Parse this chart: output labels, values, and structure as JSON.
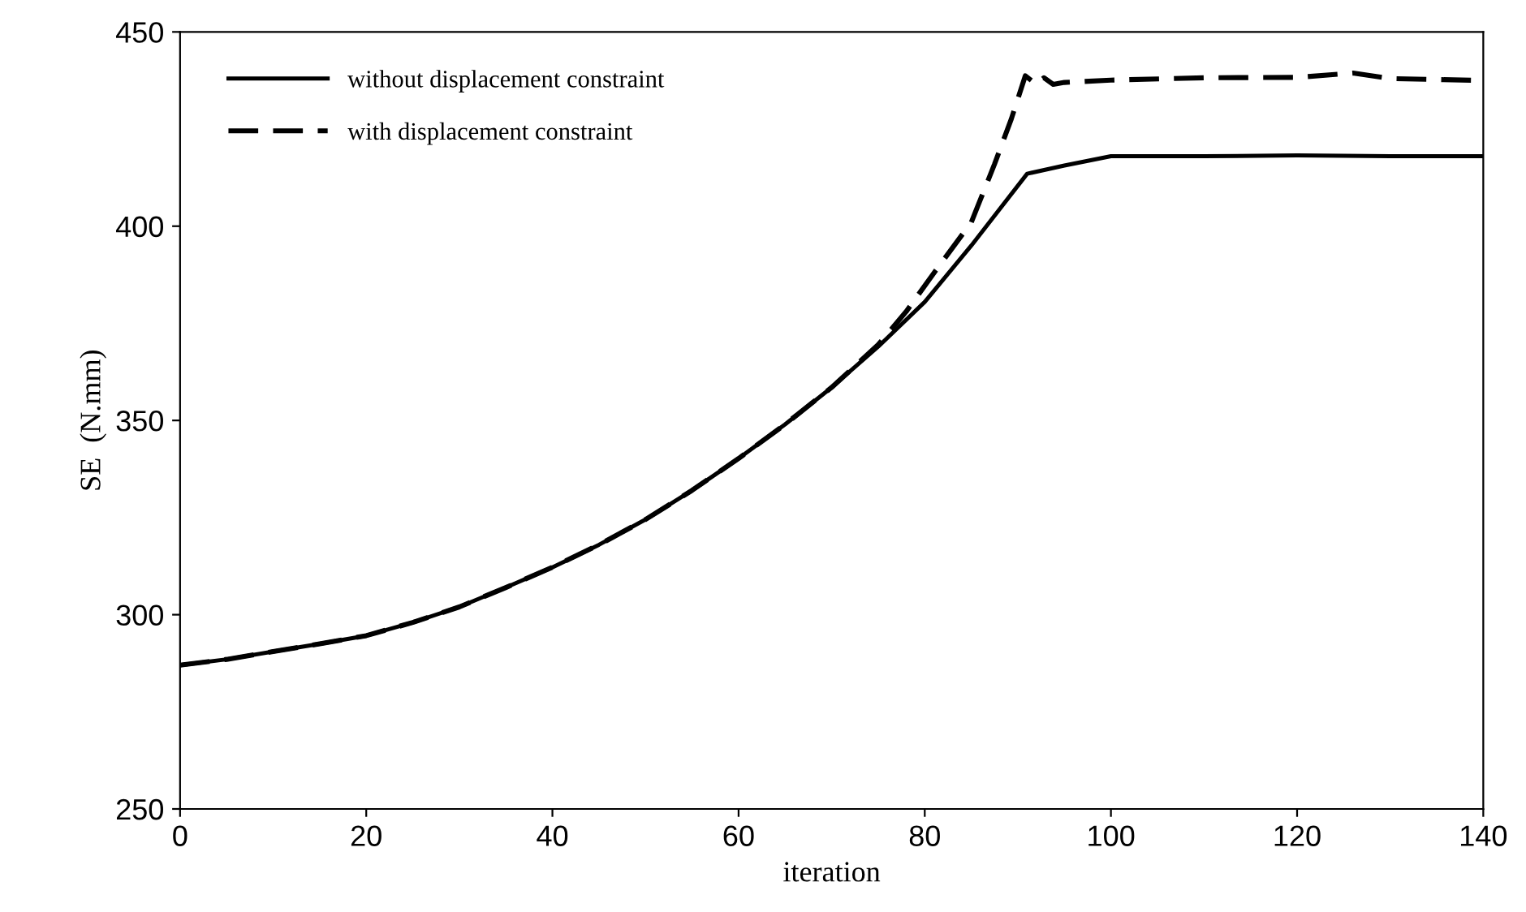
{
  "chart_data": {
    "type": "line",
    "xlabel": "iteration",
    "ylabel": "SE  (N.mm)",
    "xlim": [
      0,
      140
    ],
    "ylim": [
      250,
      450
    ],
    "xticks": [
      0,
      20,
      40,
      60,
      80,
      100,
      120,
      140
    ],
    "yticks": [
      250,
      300,
      350,
      400,
      450
    ],
    "grid": false,
    "legend": "top left",
    "marker": "none",
    "series": [
      {
        "name": "without displacement constraint",
        "color": "#000000",
        "line_style": "solid",
        "x": [
          0,
          5,
          10,
          15,
          20,
          25,
          30,
          35,
          40,
          45,
          50,
          55,
          60,
          65,
          70,
          75,
          80,
          85,
          91,
          95,
          100,
          110,
          120,
          130,
          140
        ],
        "values": [
          287,
          288.5,
          290.5,
          292.5,
          294.6,
          298,
          302,
          307,
          312.2,
          318,
          324.5,
          332,
          340.2,
          349,
          358.5,
          369,
          380.5,
          395,
          413.5,
          415.6,
          418,
          418,
          418.2,
          418,
          418
        ]
      },
      {
        "name": "with displacement constraint",
        "color": "#000000",
        "line_style": "dashed",
        "x": [
          0,
          5,
          10,
          15,
          20,
          25,
          30,
          35,
          40,
          45,
          50,
          55,
          60,
          65,
          70,
          75,
          78,
          81,
          85,
          87.5,
          89.3,
          90.8,
          92,
          92.8,
          93.8,
          95,
          100,
          110,
          120,
          126,
          130,
          140
        ],
        "values": [
          287,
          288.5,
          290.5,
          292.5,
          294.6,
          298,
          302,
          307,
          312.2,
          318,
          324.5,
          332,
          340.2,
          349,
          358.5,
          369.5,
          378,
          388,
          401,
          416,
          427.6,
          438.7,
          436.5,
          438.2,
          436.5,
          437,
          437.6,
          438.2,
          438.3,
          439.4,
          438,
          437.5
        ]
      }
    ]
  }
}
